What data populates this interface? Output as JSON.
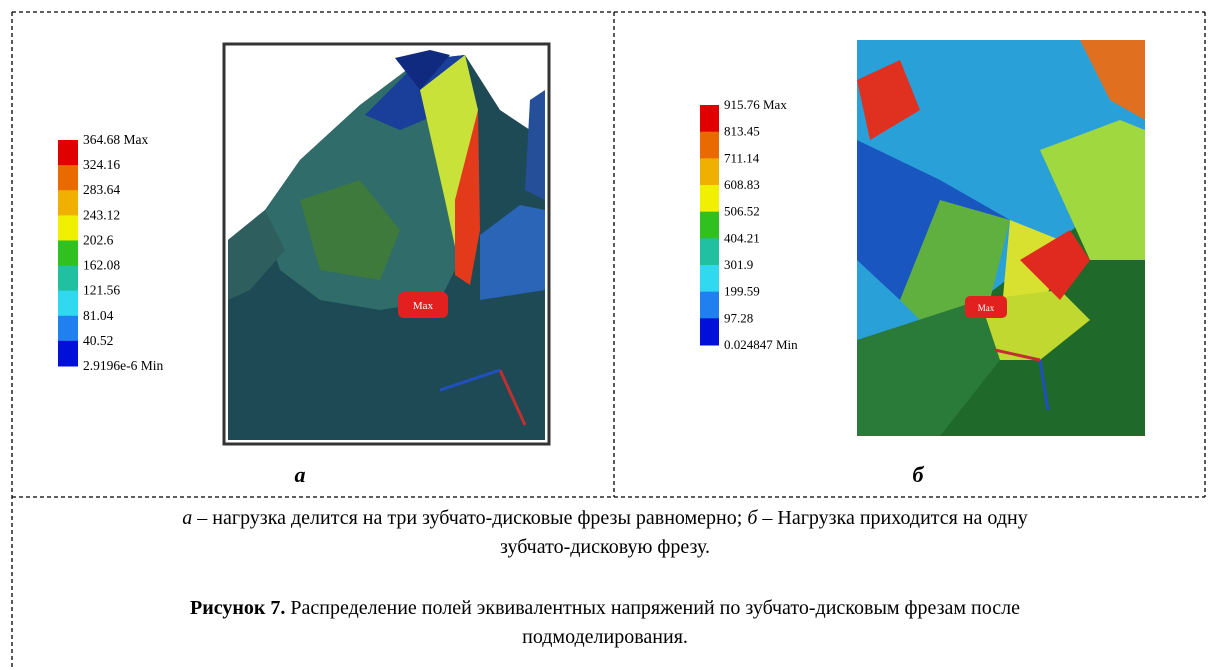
{
  "panels": [
    {
      "legend": [
        "364.68 Max",
        "324.16",
        "283.64",
        "243.12",
        "202.6",
        "162.08",
        "121.56",
        "81.04",
        "40.52",
        "2.9196e-6 Min"
      ],
      "marker": "Max",
      "label": "а"
    },
    {
      "legend": [
        "915.76 Max",
        "813.45",
        "711.14",
        "608.83",
        "506.52",
        "404.21",
        "301.9",
        "199.59",
        "97.28",
        "0.024847 Min"
      ],
      "marker": "Max",
      "label": "б"
    }
  ],
  "note": [
    "а",
    " – нагрузка делится на три зубчато-дисковые фрезы равномерно; ",
    "б",
    " – Нагрузка приходится на одну зубчато-дисковую фрезу."
  ],
  "figure": {
    "number": "Рисунок 7.",
    "text": " Распределение полей эквивалентных напряжений по зубчато-дисковым фрезам после подмоделирования."
  }
}
